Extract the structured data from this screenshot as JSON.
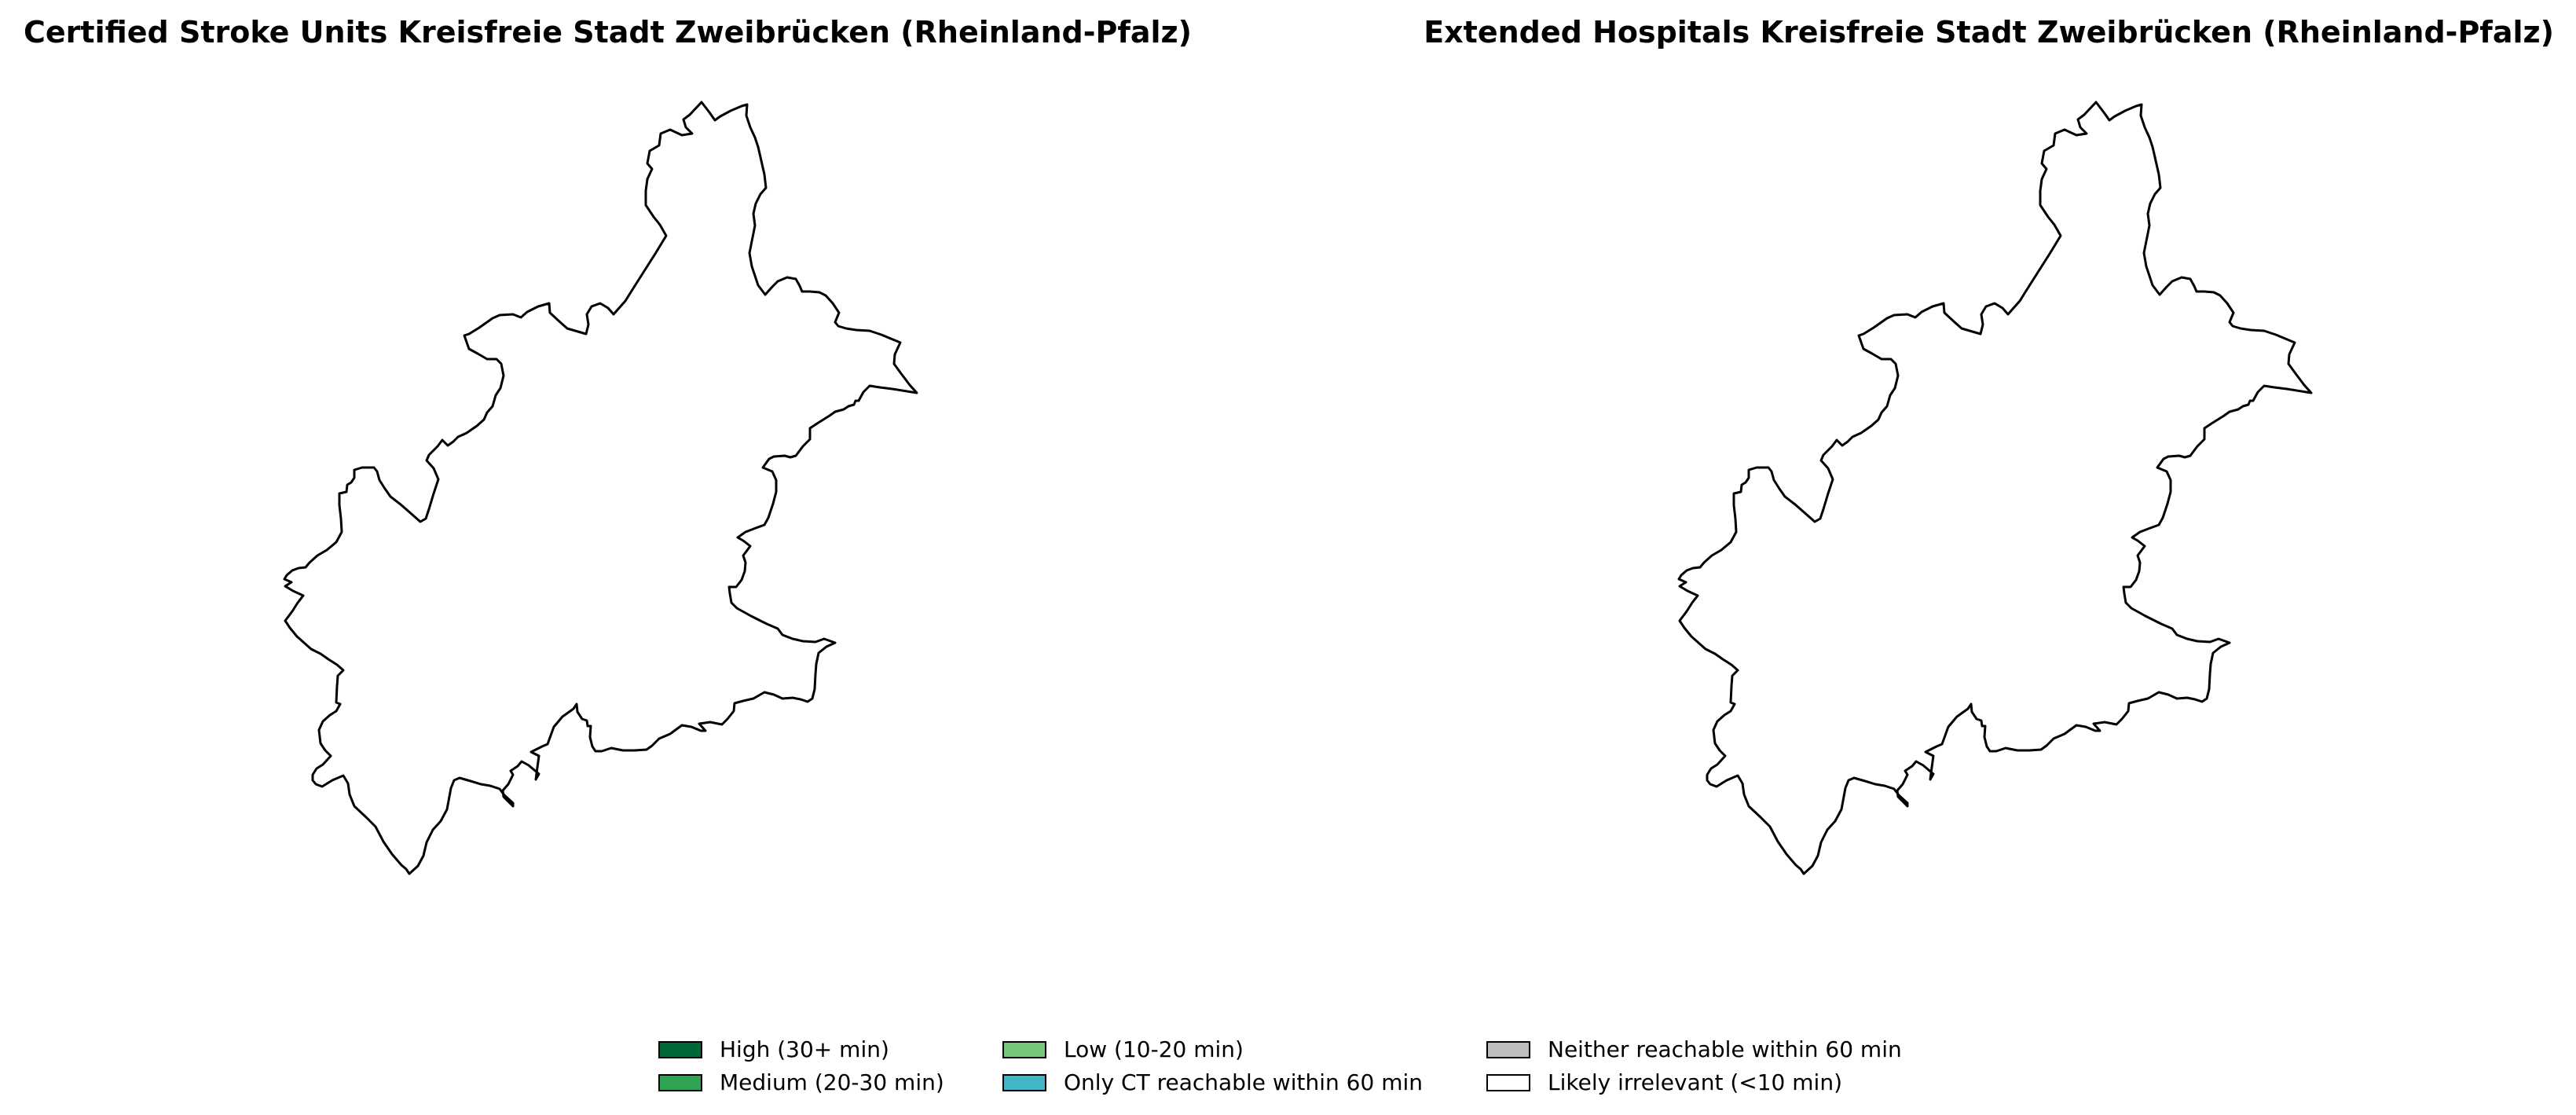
{
  "maps": {
    "left": {
      "title": "Certified Stroke Units Kreisfreie Stadt Zweibrücken (Rheinland-Pfalz)"
    },
    "right": {
      "title": "Extended Hospitals Kreisfreie Stadt Zweibrücken (Rheinland-Pfalz)"
    }
  },
  "region": {
    "fill": "#ffffff",
    "outline": "#000000"
  },
  "legend": {
    "items": [
      {
        "label": "High (30+ min)",
        "color": "#006837"
      },
      {
        "label": "Medium (20-30 min)",
        "color": "#31a354"
      },
      {
        "label": "Low (10-20 min)",
        "color": "#78c679"
      },
      {
        "label": "Only CT reachable within 60 min",
        "color": "#41b6c4"
      },
      {
        "label": "Neither reachable within 60 min",
        "color": "#bdbdbd"
      },
      {
        "label": "Likely irrelevant (<10 min)",
        "color": "#ffffff"
      }
    ]
  }
}
